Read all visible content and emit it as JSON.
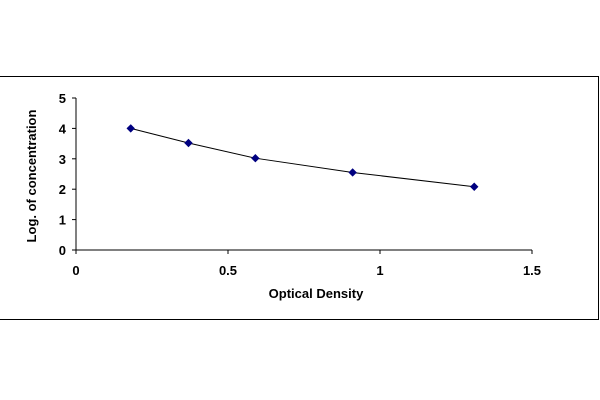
{
  "chart_data": {
    "type": "line",
    "title": "",
    "xlabel": "Optical Density",
    "ylabel": "Log. of concentration",
    "xlim": [
      0,
      1.5
    ],
    "ylim": [
      0,
      5
    ],
    "x_ticks": [
      0,
      0.5,
      1,
      1.5
    ],
    "x_tick_labels": [
      "0",
      "0.5",
      "1",
      "1.5"
    ],
    "y_ticks": [
      0,
      1,
      2,
      3,
      4,
      5
    ],
    "y_tick_labels": [
      "0",
      "1",
      "2",
      "3",
      "4",
      "5"
    ],
    "grid": false,
    "legend": "none",
    "series": [
      {
        "color": "#000080",
        "points": [
          {
            "x": 0.18,
            "y": 4.0
          },
          {
            "x": 0.37,
            "y": 3.52
          },
          {
            "x": 0.59,
            "y": 3.02
          },
          {
            "x": 0.91,
            "y": 2.55
          },
          {
            "x": 1.31,
            "y": 2.08
          }
        ]
      }
    ]
  }
}
